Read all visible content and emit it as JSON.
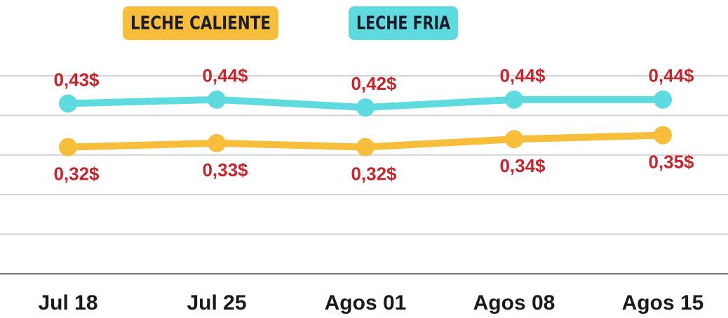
{
  "chart_data": {
    "type": "line",
    "categories": [
      "Jul 18",
      "Jul 25",
      "Agos 01",
      "Agos 08",
      "Agos 15"
    ],
    "series": [
      {
        "name": "LECHE CALIENTE",
        "color": "#f6be3a",
        "values": [
          0.32,
          0.33,
          0.32,
          0.34,
          0.35
        ],
        "value_labels": [
          "0,32$",
          "0,33$",
          "0,32$",
          "0,34$",
          "0,35$"
        ]
      },
      {
        "name": "LECHE FRIA",
        "color": "#5fdbe0",
        "values": [
          0.43,
          0.44,
          0.42,
          0.44,
          0.44
        ],
        "value_labels": [
          "0,43$",
          "0,44$",
          "0,42$",
          "0,44$",
          "0,44$"
        ]
      }
    ],
    "ylim": [
      0,
      0.5
    ],
    "yticks": [
      0,
      0.1,
      0.2,
      0.3,
      0.4,
      0.5
    ],
    "grid": true
  }
}
